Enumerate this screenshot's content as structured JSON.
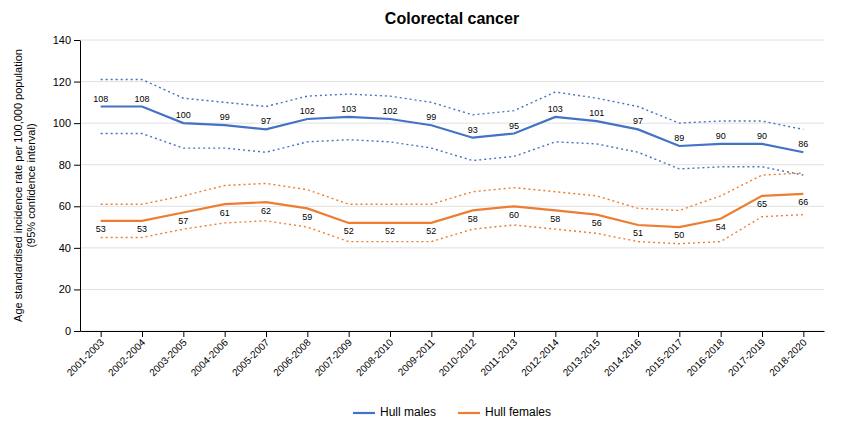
{
  "chart_data": {
    "type": "line",
    "title": "Colorectal cancer",
    "ylabel": "Age standardised incidence rate per 100,000 population\n(95% confidence interval)",
    "categories": [
      "2001-2003",
      "2002-2004",
      "2003-2005",
      "2004-2006",
      "2005-2007",
      "2006-2008",
      "2007-2009",
      "2008-2010",
      "2009-2011",
      "2010-2012",
      "2011-2013",
      "2012-2014",
      "2013-2015",
      "2014-2016",
      "2015-2017",
      "2016-2018",
      "2017-2019",
      "2018-2020"
    ],
    "series": [
      {
        "name": "Hull males",
        "color": "#4472C4",
        "line_style": "solid",
        "values": [
          108,
          108,
          100,
          99,
          97,
          102,
          103,
          102,
          99,
          93,
          95,
          103,
          101,
          97,
          89,
          90,
          90,
          86
        ],
        "upper": [
          121,
          121,
          112,
          110,
          108,
          113,
          114,
          113,
          110,
          104,
          106,
          115,
          112,
          108,
          100,
          101,
          101,
          97
        ],
        "lower": [
          95,
          95,
          88,
          88,
          86,
          91,
          92,
          91,
          88,
          82,
          84,
          91,
          90,
          86,
          78,
          79,
          79,
          75
        ]
      },
      {
        "name": "Hull females",
        "color": "#ED7D31",
        "line_style": "solid",
        "values": [
          53,
          53,
          57,
          61,
          62,
          59,
          52,
          52,
          52,
          58,
          60,
          58,
          56,
          51,
          50,
          54,
          65,
          66
        ],
        "upper": [
          61,
          61,
          65,
          70,
          71,
          68,
          61,
          61,
          61,
          67,
          69,
          67,
          65,
          59,
          58,
          65,
          75,
          76
        ],
        "lower": [
          45,
          45,
          49,
          52,
          53,
          50,
          43,
          43,
          43,
          49,
          51,
          49,
          47,
          43,
          42,
          43,
          55,
          56
        ]
      }
    ],
    "ylim": [
      0,
      140
    ],
    "yticks": [
      0,
      20,
      40,
      60,
      80,
      100,
      120,
      140
    ],
    "grid": true,
    "legend": "bottom",
    "data_labels": true
  }
}
